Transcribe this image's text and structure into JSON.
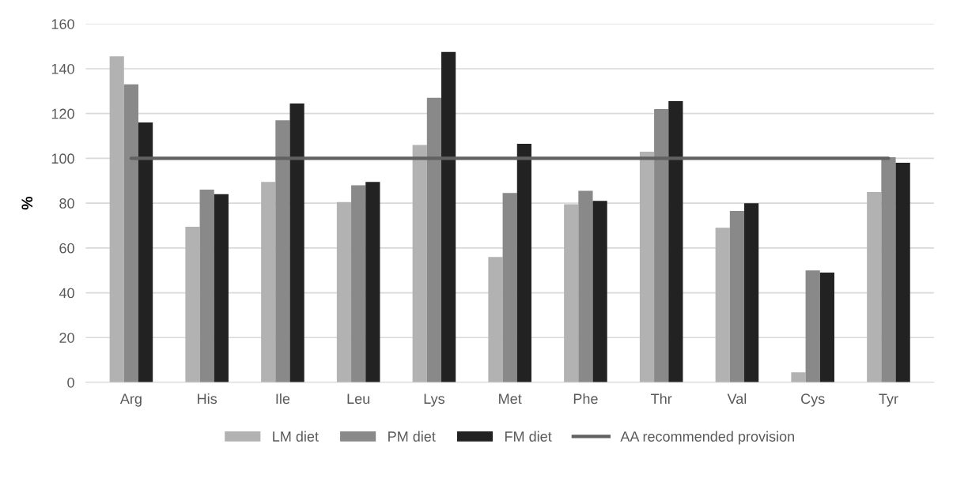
{
  "chart_data": {
    "type": "bar",
    "ylabel": "%",
    "categories": [
      "Arg",
      "His",
      "Ile",
      "Leu",
      "Lys",
      "Met",
      "Phe",
      "Thr",
      "Val",
      "Cys",
      "Tyr"
    ],
    "series": [
      {
        "name": "LM diet",
        "color": "#b2b2b2",
        "values": [
          145.5,
          69.5,
          89.5,
          80.5,
          106,
          56,
          79.5,
          103,
          69,
          4.5,
          85
        ]
      },
      {
        "name": "PM diet",
        "color": "#898989",
        "values": [
          133,
          86,
          117,
          88,
          127,
          84.5,
          85.5,
          122,
          76.5,
          50,
          100.5
        ]
      },
      {
        "name": "FM diet",
        "color": "#222222",
        "values": [
          116,
          84,
          124.5,
          89.5,
          147.5,
          106.5,
          81,
          125.5,
          80,
          49,
          98
        ]
      },
      {
        "name": "AA recommended provision",
        "type": "line",
        "color": "#616161",
        "values": [
          100,
          100,
          100,
          100,
          100,
          100,
          100,
          100,
          100,
          100,
          100
        ]
      }
    ],
    "ylim": [
      0,
      160
    ],
    "yticks": [
      0,
      20,
      40,
      60,
      80,
      100,
      120,
      140,
      160
    ],
    "grid": "y",
    "legend": "bottom"
  }
}
